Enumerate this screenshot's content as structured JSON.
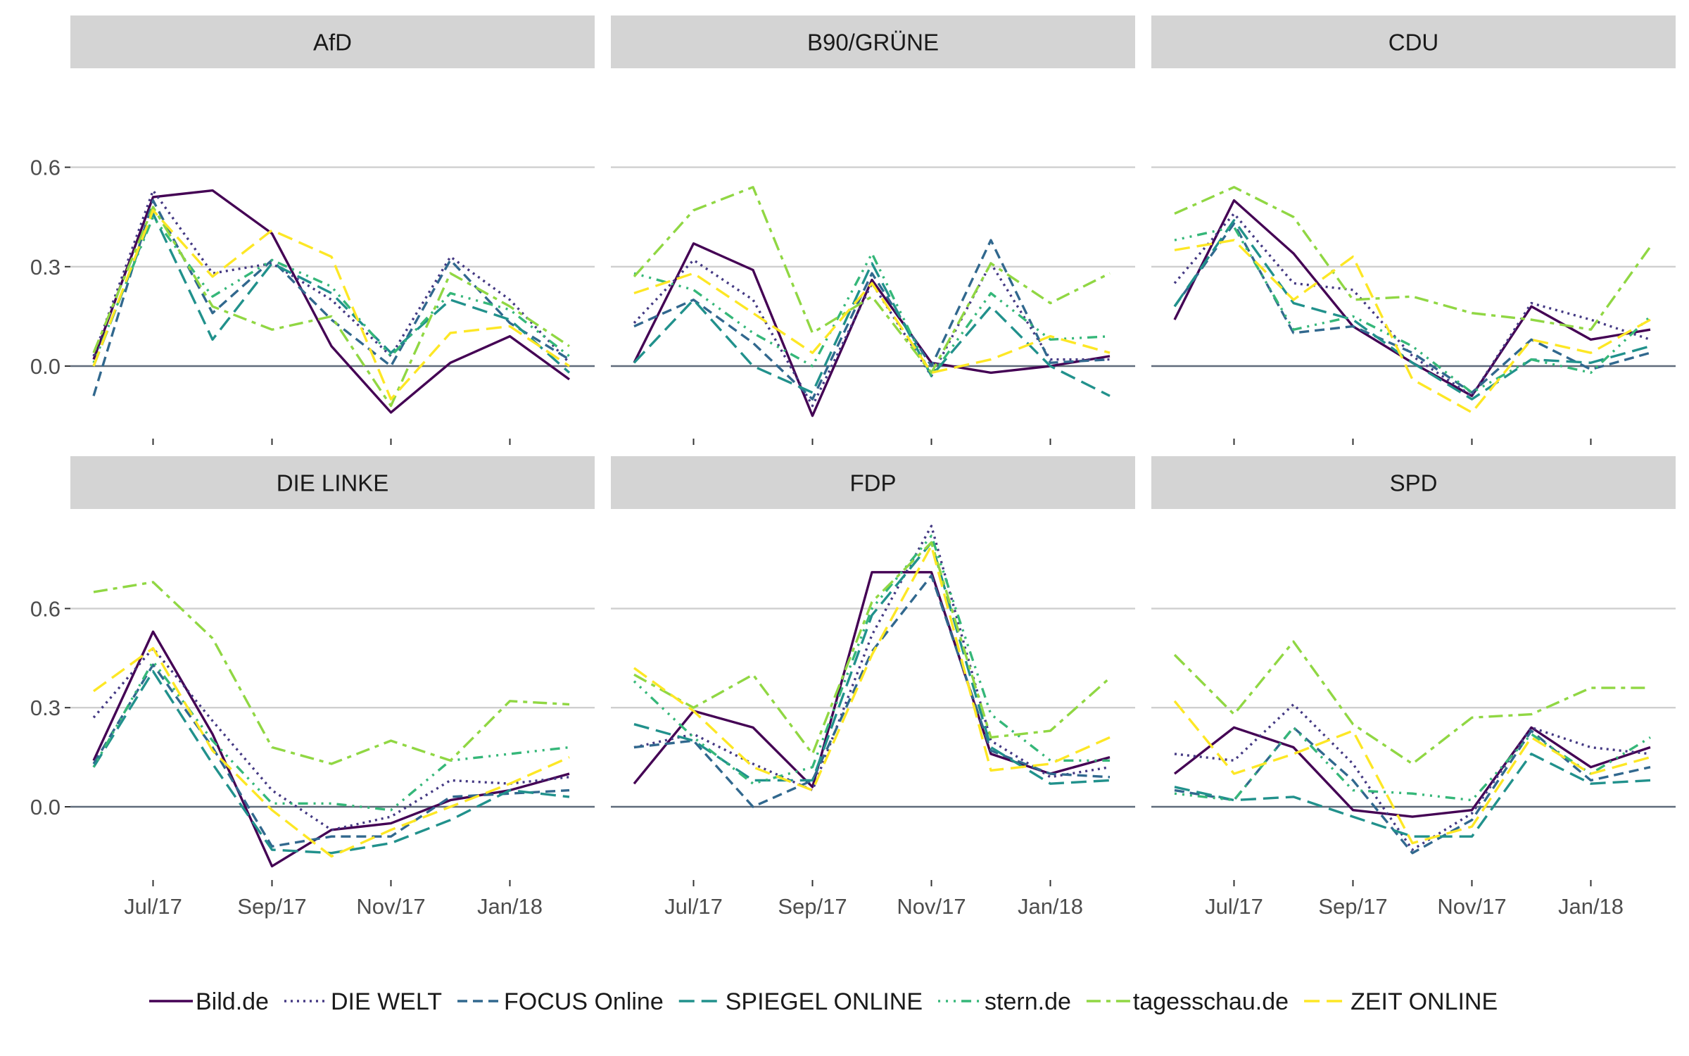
{
  "chart_data": {
    "type": "line",
    "layout": "facet-grid",
    "x_ticks": [
      "Jul/17",
      "Sep/17",
      "Nov/17",
      "Jan/18"
    ],
    "x": [
      "2017-06",
      "2017-07",
      "2017-08",
      "2017-09",
      "2017-10",
      "2017-11",
      "2017-12",
      "2018-01",
      "2018-02"
    ],
    "x_tick_months": [
      "2017-07",
      "2017-09",
      "2017-11",
      "2018-01"
    ],
    "y_ticks": [
      0.0,
      0.3,
      0.6
    ],
    "y_tick_labels": [
      "0.0",
      "0.3",
      "0.6"
    ],
    "legend": {
      "position": "bottom",
      "entries": [
        "Bild.de",
        "DIE WELT",
        "FOCUS Online",
        "SPIEGEL ONLINE",
        "stern.de",
        "tagesschau.de",
        "ZEIT ONLINE"
      ]
    },
    "series_styles": [
      {
        "name": "Bild.de",
        "color": "#440154",
        "dash": "solid"
      },
      {
        "name": "DIE WELT",
        "color": "#443983",
        "dash": "dotted"
      },
      {
        "name": "FOCUS Online",
        "color": "#31688e",
        "dash": "dashed"
      },
      {
        "name": "SPIEGEL ONLINE",
        "color": "#21918c",
        "dash": "longdash"
      },
      {
        "name": "stern.de",
        "color": "#35b779",
        "dash": "dotdash"
      },
      {
        "name": "tagesschau.de",
        "color": "#90d743",
        "dash": "twodash"
      },
      {
        "name": "ZEIT ONLINE",
        "color": "#fde725",
        "dash": "longdash"
      }
    ],
    "panels": [
      {
        "title": "AfD",
        "ylim": [
          -0.18,
          0.62
        ],
        "series": [
          {
            "name": "Bild.de",
            "values": [
              0.02,
              0.51,
              0.53,
              0.4,
              0.06,
              -0.14,
              0.01,
              0.09,
              -0.04
            ]
          },
          {
            "name": "DIE WELT",
            "values": [
              0.03,
              0.53,
              0.28,
              0.31,
              0.2,
              0.03,
              0.33,
              0.2,
              0.01
            ]
          },
          {
            "name": "FOCUS Online",
            "values": [
              -0.09,
              0.5,
              0.16,
              0.32,
              0.14,
              0.0,
              0.32,
              0.13,
              0.02
            ]
          },
          {
            "name": "SPIEGEL ONLINE",
            "values": [
              0.0,
              0.46,
              0.08,
              0.31,
              0.22,
              0.04,
              0.2,
              0.14,
              -0.02
            ]
          },
          {
            "name": "stern.de",
            "values": [
              0.01,
              0.45,
              0.21,
              0.32,
              0.24,
              0.03,
              0.22,
              0.17,
              0.03
            ]
          },
          {
            "name": "tagesschau.de",
            "values": [
              0.04,
              0.48,
              0.18,
              0.11,
              0.15,
              -0.12,
              0.28,
              0.18,
              0.06
            ]
          },
          {
            "name": "ZEIT ONLINE",
            "values": [
              0.0,
              0.47,
              0.27,
              0.41,
              0.33,
              -0.1,
              0.1,
              0.12,
              0.0
            ]
          }
        ]
      },
      {
        "title": "B90/GRÜNE",
        "ylim": [
          -0.18,
          0.62
        ],
        "series": [
          {
            "name": "Bild.de",
            "values": [
              0.01,
              0.37,
              0.29,
              -0.15,
              0.26,
              0.01,
              -0.02,
              0.0,
              0.03
            ]
          },
          {
            "name": "DIE WELT",
            "values": [
              0.13,
              0.32,
              0.2,
              -0.12,
              0.25,
              -0.03,
              0.31,
              0.02,
              0.02
            ]
          },
          {
            "name": "FOCUS Online",
            "values": [
              0.12,
              0.2,
              0.07,
              -0.1,
              0.28,
              0.0,
              0.38,
              0.01,
              0.02
            ]
          },
          {
            "name": "SPIEGEL ONLINE",
            "values": [
              0.01,
              0.2,
              0.0,
              -0.08,
              0.31,
              -0.03,
              0.18,
              0.0,
              -0.09
            ]
          },
          {
            "name": "stern.de",
            "values": [
              0.28,
              0.23,
              0.1,
              0.0,
              0.34,
              -0.03,
              0.22,
              0.08,
              0.09
            ]
          },
          {
            "name": "tagesschau.de",
            "values": [
              0.27,
              0.47,
              0.54,
              0.1,
              0.21,
              -0.02,
              0.31,
              0.19,
              0.28
            ]
          },
          {
            "name": "ZEIT ONLINE",
            "values": [
              0.22,
              0.28,
              0.16,
              0.04,
              0.25,
              -0.02,
              0.02,
              0.09,
              0.04
            ]
          }
        ]
      },
      {
        "title": "CDU",
        "ylim": [
          -0.18,
          0.62
        ],
        "series": [
          {
            "name": "Bild.de",
            "values": [
              0.14,
              0.5,
              0.34,
              0.12,
              0.01,
              -0.09,
              0.18,
              0.08,
              0.11
            ]
          },
          {
            "name": "DIE WELT",
            "values": [
              0.25,
              0.46,
              0.25,
              0.23,
              0.03,
              -0.09,
              0.19,
              0.14,
              0.08
            ]
          },
          {
            "name": "FOCUS Online",
            "values": [
              0.18,
              0.43,
              0.1,
              0.12,
              0.04,
              -0.08,
              0.08,
              -0.01,
              0.04
            ]
          },
          {
            "name": "SPIEGEL ONLINE",
            "values": [
              0.18,
              0.44,
              0.19,
              0.14,
              0.01,
              -0.1,
              0.02,
              0.01,
              0.06
            ]
          },
          {
            "name": "stern.de",
            "values": [
              0.38,
              0.42,
              0.11,
              0.15,
              0.06,
              -0.08,
              0.02,
              -0.02,
              0.15
            ]
          },
          {
            "name": "tagesschau.de",
            "values": [
              0.46,
              0.54,
              0.45,
              0.2,
              0.21,
              0.16,
              0.14,
              0.11,
              0.36
            ]
          },
          {
            "name": "ZEIT ONLINE",
            "values": [
              0.35,
              0.38,
              0.2,
              0.33,
              -0.04,
              -0.14,
              0.08,
              0.04,
              0.14
            ]
          }
        ]
      },
      {
        "title": "DIE LINKE",
        "ylim": [
          -0.22,
          0.78
        ],
        "series": [
          {
            "name": "Bild.de",
            "values": [
              0.14,
              0.53,
              0.22,
              -0.18,
              -0.07,
              -0.05,
              0.02,
              0.05,
              0.1
            ]
          },
          {
            "name": "DIE WELT",
            "values": [
              0.27,
              0.48,
              0.26,
              0.05,
              -0.07,
              -0.03,
              0.08,
              0.07,
              0.09
            ]
          },
          {
            "name": "FOCUS Online",
            "values": [
              0.13,
              0.43,
              0.18,
              -0.12,
              -0.09,
              -0.09,
              0.03,
              0.04,
              0.05
            ]
          },
          {
            "name": "SPIEGEL ONLINE",
            "values": [
              0.12,
              0.41,
              0.13,
              -0.13,
              -0.14,
              -0.11,
              -0.04,
              0.05,
              0.03
            ]
          },
          {
            "name": "stern.de",
            "values": [
              0.12,
              0.44,
              0.2,
              0.01,
              0.01,
              -0.01,
              0.14,
              0.16,
              0.18
            ]
          },
          {
            "name": "tagesschau.de",
            "values": [
              0.65,
              0.68,
              0.51,
              0.18,
              0.13,
              0.2,
              0.14,
              0.32,
              0.31
            ]
          },
          {
            "name": "ZEIT ONLINE",
            "values": [
              0.35,
              0.48,
              0.17,
              -0.01,
              -0.15,
              -0.07,
              0.0,
              0.07,
              0.15
            ]
          }
        ]
      },
      {
        "title": "FDP",
        "ylim": [
          -0.22,
          0.78
        ],
        "series": [
          {
            "name": "Bild.de",
            "values": [
              0.07,
              0.29,
              0.24,
              0.06,
              0.71,
              0.71,
              0.16,
              0.1,
              0.15
            ]
          },
          {
            "name": "DIE WELT",
            "values": [
              0.18,
              0.22,
              0.13,
              0.05,
              0.52,
              0.85,
              0.2,
              0.09,
              0.12
            ]
          },
          {
            "name": "FOCUS Online",
            "values": [
              0.18,
              0.2,
              0.0,
              0.08,
              0.47,
              0.7,
              0.17,
              0.1,
              0.09
            ]
          },
          {
            "name": "SPIEGEL ONLINE",
            "values": [
              0.25,
              0.2,
              0.08,
              0.08,
              0.58,
              0.8,
              0.18,
              0.07,
              0.08
            ]
          },
          {
            "name": "stern.de",
            "values": [
              0.38,
              0.21,
              0.07,
              0.12,
              0.6,
              0.82,
              0.28,
              0.14,
              0.14
            ]
          },
          {
            "name": "tagesschau.de",
            "values": [
              0.4,
              0.3,
              0.4,
              0.16,
              0.62,
              0.8,
              0.21,
              0.23,
              0.39
            ]
          },
          {
            "name": "ZEIT ONLINE",
            "values": [
              0.42,
              0.29,
              0.12,
              0.05,
              0.46,
              0.79,
              0.11,
              0.13,
              0.21
            ]
          }
        ]
      },
      {
        "title": "SPD",
        "ylim": [
          -0.22,
          0.78
        ],
        "series": [
          {
            "name": "Bild.de",
            "values": [
              0.1,
              0.24,
              0.18,
              -0.01,
              -0.03,
              -0.01,
              0.24,
              0.12,
              0.18
            ]
          },
          {
            "name": "DIE WELT",
            "values": [
              0.16,
              0.14,
              0.31,
              0.13,
              -0.13,
              -0.02,
              0.24,
              0.18,
              0.16
            ]
          },
          {
            "name": "FOCUS Online",
            "values": [
              0.05,
              0.02,
              0.24,
              0.08,
              -0.14,
              -0.04,
              0.23,
              0.08,
              0.12
            ]
          },
          {
            "name": "SPIEGEL ONLINE",
            "values": [
              0.06,
              0.02,
              0.03,
              -0.03,
              -0.09,
              -0.09,
              0.16,
              0.07,
              0.08
            ]
          },
          {
            "name": "stern.de",
            "values": [
              0.04,
              0.02,
              0.24,
              0.05,
              0.04,
              0.02,
              0.22,
              0.1,
              0.21
            ]
          },
          {
            "name": "tagesschau.de",
            "values": [
              0.46,
              0.28,
              0.5,
              0.25,
              0.13,
              0.27,
              0.28,
              0.36,
              0.36
            ]
          },
          {
            "name": "ZEIT ONLINE",
            "values": [
              0.32,
              0.1,
              0.16,
              0.23,
              -0.11,
              -0.06,
              0.21,
              0.1,
              0.15
            ]
          }
        ]
      }
    ]
  }
}
